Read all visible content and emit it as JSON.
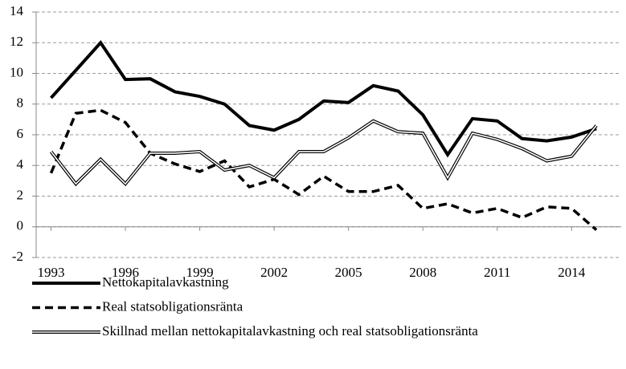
{
  "chart_data": {
    "type": "line",
    "x": [
      1993,
      1994,
      1995,
      1996,
      1997,
      1998,
      1999,
      2000,
      2001,
      2002,
      2003,
      2004,
      2005,
      2006,
      2007,
      2008,
      2009,
      2010,
      2011,
      2012,
      2013,
      2014,
      2015
    ],
    "series": [
      {
        "name": "Nettokapitalavkastning",
        "color": "#000000",
        "style": "solid",
        "values": [
          8.4,
          10.2,
          12.0,
          9.6,
          9.65,
          8.8,
          8.5,
          8.0,
          6.6,
          6.3,
          7.0,
          8.2,
          8.1,
          9.2,
          8.85,
          7.3,
          4.7,
          7.05,
          6.9,
          5.75,
          5.6,
          5.85,
          6.4
        ]
      },
      {
        "name": "Real statsobligationsränta",
        "color": "#000000",
        "style": "dashed",
        "values": [
          3.5,
          7.4,
          7.6,
          6.8,
          4.8,
          4.1,
          3.6,
          4.3,
          2.6,
          3.1,
          2.1,
          3.3,
          2.3,
          2.3,
          2.7,
          1.2,
          1.5,
          0.9,
          1.2,
          0.6,
          1.3,
          1.2,
          -0.2
        ]
      },
      {
        "name": "Skillnad mellan nettokapitalavkastning och real statsobligationsränta",
        "color": "#000000",
        "style": "double",
        "values": [
          4.9,
          2.8,
          4.4,
          2.8,
          4.8,
          4.8,
          4.9,
          3.7,
          4.0,
          3.2,
          4.9,
          4.9,
          5.8,
          6.9,
          6.2,
          6.1,
          3.2,
          6.1,
          5.7,
          5.1,
          4.3,
          4.6,
          6.6
        ]
      }
    ],
    "xlim": [
      1992.4,
      2016.0
    ],
    "xticks": [
      1993,
      1996,
      1999,
      2002,
      2005,
      2008,
      2011,
      2014
    ],
    "ylim": [
      -2,
      14
    ],
    "yticks": [
      -2,
      0,
      2,
      4,
      6,
      8,
      10,
      12,
      14
    ],
    "grid": true
  }
}
